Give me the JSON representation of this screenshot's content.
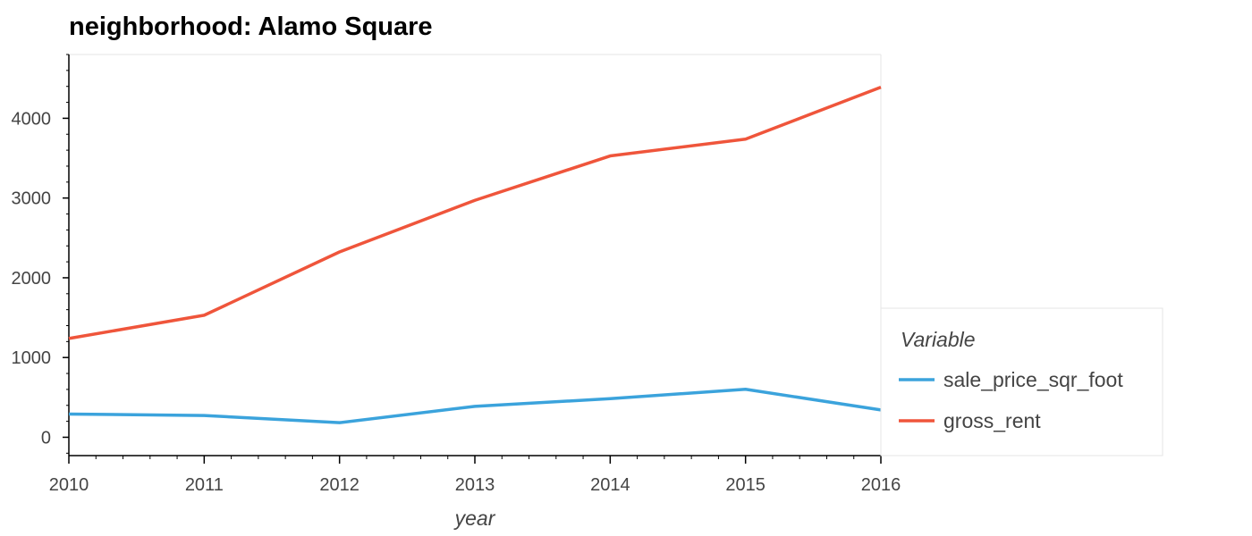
{
  "chart_data": {
    "type": "line",
    "title": "neighborhood: Alamo Square",
    "xlabel": "year",
    "ylabel": "",
    "x": [
      2010,
      2011,
      2012,
      2013,
      2014,
      2015,
      2016
    ],
    "x_ticks": [
      "2010",
      "2011",
      "2012",
      "2013",
      "2014",
      "2015",
      "2016"
    ],
    "xlim": [
      2010,
      2016
    ],
    "y_ticks": [
      "0",
      "1000",
      "2000",
      "3000",
      "4000"
    ],
    "ylim": [
      -230,
      4800
    ],
    "grid": false,
    "legend": {
      "title": "Variable",
      "placement": "right"
    },
    "series": [
      {
        "name": "sale_price_sqr_foot",
        "color": "#3ba3dc",
        "values": [
          291,
          273,
          183,
          388,
          484,
          602,
          343
        ]
      },
      {
        "name": "gross_rent",
        "color": "#ef553b",
        "values": [
          1239,
          1530,
          2324,
          2971,
          3528,
          3739,
          4390
        ]
      }
    ]
  }
}
